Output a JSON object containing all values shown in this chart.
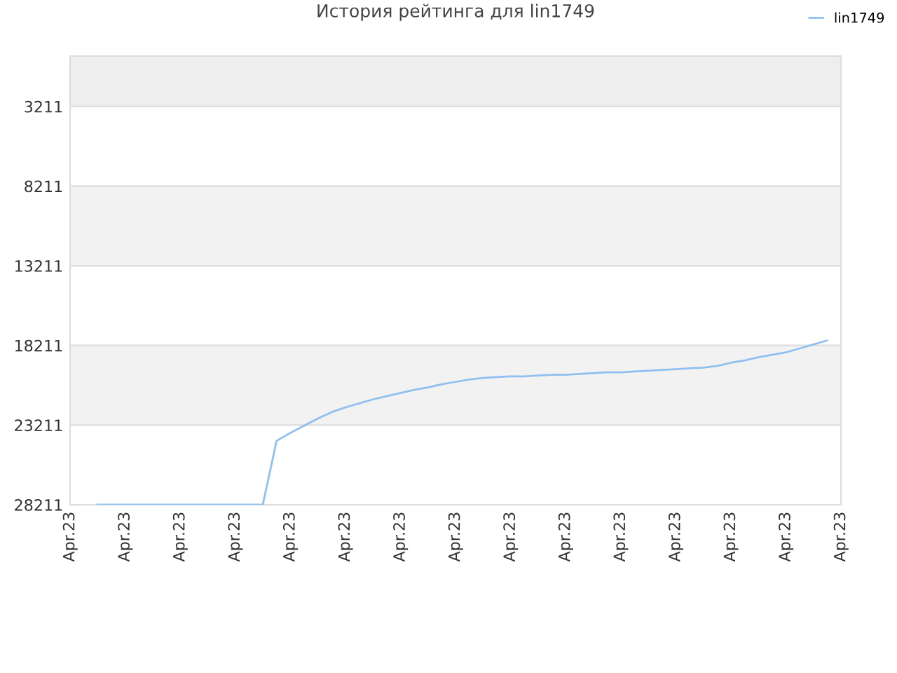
{
  "chart_data": {
    "type": "line",
    "title": "История рейтинга для lin1749",
    "categories": [
      "Apr.23",
      null,
      null,
      null,
      "Apr.23",
      null,
      null,
      null,
      "Apr.23",
      null,
      null,
      null,
      "Apr.23",
      null,
      null,
      null,
      "Apr.23",
      null,
      null,
      null,
      "Apr.23",
      null,
      null,
      null,
      "Apr.23",
      null,
      null,
      null,
      "Apr.23",
      null,
      null,
      null,
      "Apr.23",
      null,
      null,
      null,
      "Apr.23",
      null,
      null,
      null,
      "Apr.23",
      null,
      null,
      null,
      "Apr.23",
      null,
      null,
      null,
      "Apr.23",
      null,
      null,
      null,
      "Apr.23",
      null,
      null,
      null,
      "Apr.23"
    ],
    "series": [
      {
        "name": "lin1749",
        "color": "#90c0f0",
        "values": [
          null,
          null,
          28211,
          28211,
          28211,
          28211,
          28211,
          28211,
          28211,
          28211,
          28211,
          28211,
          28211,
          28211,
          28200,
          24200,
          23700,
          23250,
          22800,
          22400,
          22100,
          21850,
          21600,
          21400,
          21200,
          21000,
          20850,
          20650,
          20500,
          20350,
          20250,
          20200,
          20150,
          20150,
          20100,
          20050,
          20050,
          20000,
          19950,
          19900,
          19900,
          19850,
          19800,
          19750,
          19700,
          19650,
          19600,
          19500,
          19300,
          19150,
          18950,
          18800,
          18650,
          18400,
          18150,
          17900,
          null
        ]
      }
    ],
    "ylim": [
      28211,
      50
    ],
    "yticks": [
      3211,
      8211,
      13211,
      18211,
      23211,
      28211
    ],
    "grid": "y",
    "legend": "top right",
    "marker": "none",
    "line_style": "solid"
  }
}
